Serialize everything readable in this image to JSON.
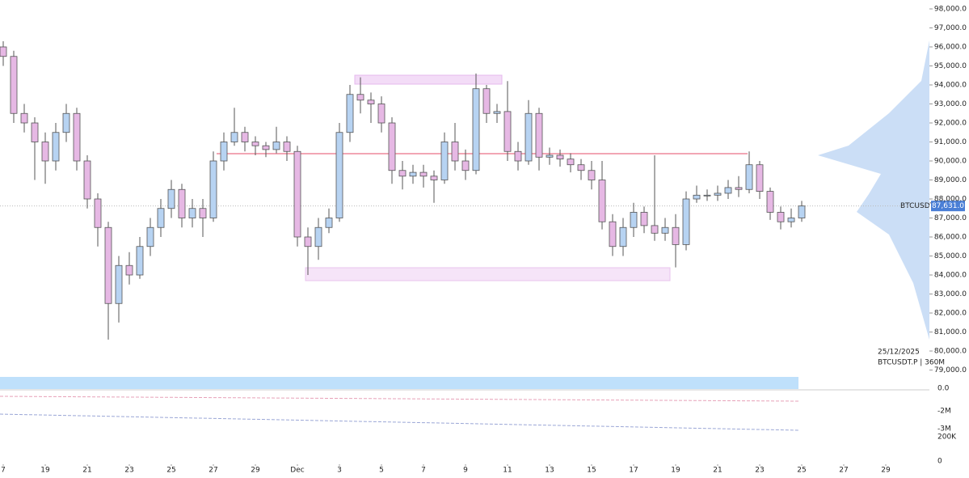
{
  "chart_data": {
    "type": "candlestick",
    "symbol": "BTCUSDT.P",
    "date_label": "25/12/2025",
    "interval_label": "BTCUSDT.P | 360M",
    "last_price": {
      "value": 87631,
      "label": "87,631.0"
    },
    "up_color": "#b7d3f2",
    "down_color": "#e6b8e4",
    "ylim": [
      79000,
      98000
    ],
    "yticks": [
      {
        "value": 79000,
        "label": "79,000.0"
      },
      {
        "value": 80000,
        "label": "80,000.0"
      },
      {
        "value": 81000,
        "label": "81,000.0"
      },
      {
        "value": 82000,
        "label": "82,000.0"
      },
      {
        "value": 83000,
        "label": "83,000.0"
      },
      {
        "value": 84000,
        "label": "84,000.0"
      },
      {
        "value": 85000,
        "label": "85,000.0"
      },
      {
        "value": 86000,
        "label": "86,000.0"
      },
      {
        "value": 87000,
        "label": "87,000.0"
      },
      {
        "value": 88000,
        "label": "88,000.0"
      },
      {
        "value": 89000,
        "label": "89,000.0"
      },
      {
        "value": 90000,
        "label": "90,000.0"
      },
      {
        "value": 91000,
        "label": "91,000.0"
      },
      {
        "value": 92000,
        "label": "92,000.0"
      },
      {
        "value": 93000,
        "label": "93,000.0"
      },
      {
        "value": 94000,
        "label": "94,000.0"
      },
      {
        "value": 95000,
        "label": "95,000.0"
      },
      {
        "value": 96000,
        "label": "96,000.0"
      },
      {
        "value": 97000,
        "label": "97,000.0"
      },
      {
        "value": 98000,
        "label": "98,000.0"
      }
    ],
    "xlim": [
      0,
      46
    ],
    "xticks": [
      {
        "value": 0,
        "label": "7"
      },
      {
        "value": 2,
        "label": "19"
      },
      {
        "value": 4,
        "label": "21"
      },
      {
        "value": 6,
        "label": "23"
      },
      {
        "value": 8,
        "label": "25"
      },
      {
        "value": 10,
        "label": "27"
      },
      {
        "value": 12,
        "label": "29"
      },
      {
        "value": 14,
        "label": "Dec"
      },
      {
        "value": 16,
        "label": "3"
      },
      {
        "value": 18,
        "label": "5"
      },
      {
        "value": 20,
        "label": "7"
      },
      {
        "value": 22,
        "label": "9"
      },
      {
        "value": 24,
        "label": "11"
      },
      {
        "value": 26,
        "label": "13"
      },
      {
        "value": 28,
        "label": "15"
      },
      {
        "value": 30,
        "label": "17"
      },
      {
        "value": 32,
        "label": "19"
      },
      {
        "value": 34,
        "label": "21"
      },
      {
        "value": 36,
        "label": "23"
      },
      {
        "value": 38,
        "label": "25"
      },
      {
        "value": 40,
        "label": "27"
      },
      {
        "value": 42,
        "label": "29"
      }
    ],
    "indicator_axis_labels": [
      "0.0",
      "-2M",
      "-3M",
      "200K",
      "0"
    ],
    "x": [
      0,
      0.5,
      1,
      1.5,
      2,
      2.5,
      3,
      3.5,
      4,
      4.5,
      5,
      5.5,
      6,
      6.5,
      7,
      7.5,
      8,
      8.5,
      9,
      9.5,
      10,
      10.5,
      11,
      11.5,
      12,
      12.5,
      13,
      13.5,
      14,
      14.5,
      15,
      15.5,
      16,
      16.5,
      17,
      17.5,
      18,
      18.5,
      19,
      19.5,
      20,
      20.5,
      21,
      21.5,
      22,
      22.5,
      23,
      23.5,
      24,
      24.5,
      25,
      25.5,
      26,
      26.5,
      27,
      27.5,
      28,
      28.5,
      29,
      29.5,
      30,
      30.5,
      31,
      31.5,
      32,
      32.5,
      33,
      33.5,
      34,
      34.5,
      35,
      35.5,
      36,
      36.5,
      37,
      37.5,
      38
    ],
    "open": [
      96000,
      95500,
      92500,
      92000,
      91000,
      90000,
      91500,
      92500,
      90000,
      88000,
      86500,
      82500,
      84500,
      84000,
      85500,
      86500,
      87500,
      88500,
      87000,
      87500,
      87000,
      90000,
      91000,
      91500,
      91000,
      90800,
      90600,
      91000,
      90500,
      86000,
      85500,
      86500,
      87000,
      91500,
      93500,
      93200,
      93000,
      92000,
      89500,
      89200,
      89400,
      89200,
      89000,
      91000,
      90000,
      89500,
      93800,
      92500,
      92600,
      90500,
      90000,
      92500,
      90200,
      90300,
      90100,
      89800,
      89500,
      89000,
      86800,
      85500,
      86500,
      87300,
      86600,
      86200,
      86500,
      85600,
      88000,
      88200,
      88200,
      88300,
      88600,
      88500,
      89800,
      88400,
      87300,
      86800,
      87000
    ],
    "high": [
      96300,
      95800,
      93000,
      92300,
      91500,
      92000,
      93000,
      92800,
      90300,
      88300,
      86800,
      85000,
      85200,
      86000,
      87000,
      88000,
      89000,
      88800,
      88000,
      88000,
      90500,
      91500,
      92800,
      91800,
      91300,
      91000,
      91800,
      91300,
      90800,
      86500,
      87000,
      87500,
      92000,
      94000,
      94400,
      93600,
      93400,
      92300,
      90000,
      89800,
      89800,
      89500,
      91500,
      92000,
      90600,
      94600,
      94000,
      93000,
      94200,
      91000,
      93200,
      92800,
      90700,
      90600,
      90400,
      90100,
      90000,
      90000,
      87200,
      87000,
      87800,
      87600,
      90300,
      87000,
      87200,
      88400,
      88700,
      88500,
      88700,
      89000,
      89200,
      90500,
      90000,
      88600,
      87600,
      87500,
      87900
    ],
    "low": [
      95000,
      92000,
      91500,
      89000,
      88800,
      89500,
      91000,
      89500,
      87500,
      85500,
      80600,
      81500,
      83500,
      83800,
      85000,
      86000,
      87000,
      86500,
      86500,
      86000,
      86800,
      89500,
      90800,
      90500,
      90300,
      90200,
      90400,
      90000,
      85500,
      84000,
      84800,
      86200,
      86800,
      91000,
      92500,
      92000,
      91500,
      88800,
      88500,
      88800,
      88600,
      87800,
      88800,
      89500,
      89000,
      89300,
      92000,
      92000,
      90000,
      89500,
      89800,
      89500,
      89800,
      89700,
      89400,
      89000,
      88500,
      86400,
      85000,
      85000,
      86000,
      86200,
      85800,
      85800,
      84400,
      85300,
      87800,
      87900,
      87900,
      88000,
      88100,
      88300,
      88000,
      86900,
      86400,
      86500,
      86800
    ],
    "close": [
      95500,
      92500,
      92000,
      91000,
      90000,
      91500,
      92500,
      90000,
      88000,
      86500,
      82500,
      84500,
      84000,
      85500,
      86500,
      87500,
      88500,
      87000,
      87500,
      87000,
      90000,
      91000,
      91500,
      91000,
      90800,
      90600,
      91000,
      90500,
      86000,
      85500,
      86500,
      87000,
      91500,
      93500,
      93200,
      93000,
      92000,
      89500,
      89200,
      89400,
      89200,
      89000,
      91000,
      90000,
      89500,
      93800,
      92500,
      92600,
      90500,
      90000,
      92500,
      90200,
      90300,
      90100,
      89800,
      89500,
      89000,
      86800,
      85500,
      86500,
      87300,
      86600,
      86200,
      86500,
      85600,
      88000,
      88200,
      88200,
      88300,
      88600,
      88500,
      89800,
      88400,
      87300,
      86800,
      87000,
      87631
    ]
  }
}
